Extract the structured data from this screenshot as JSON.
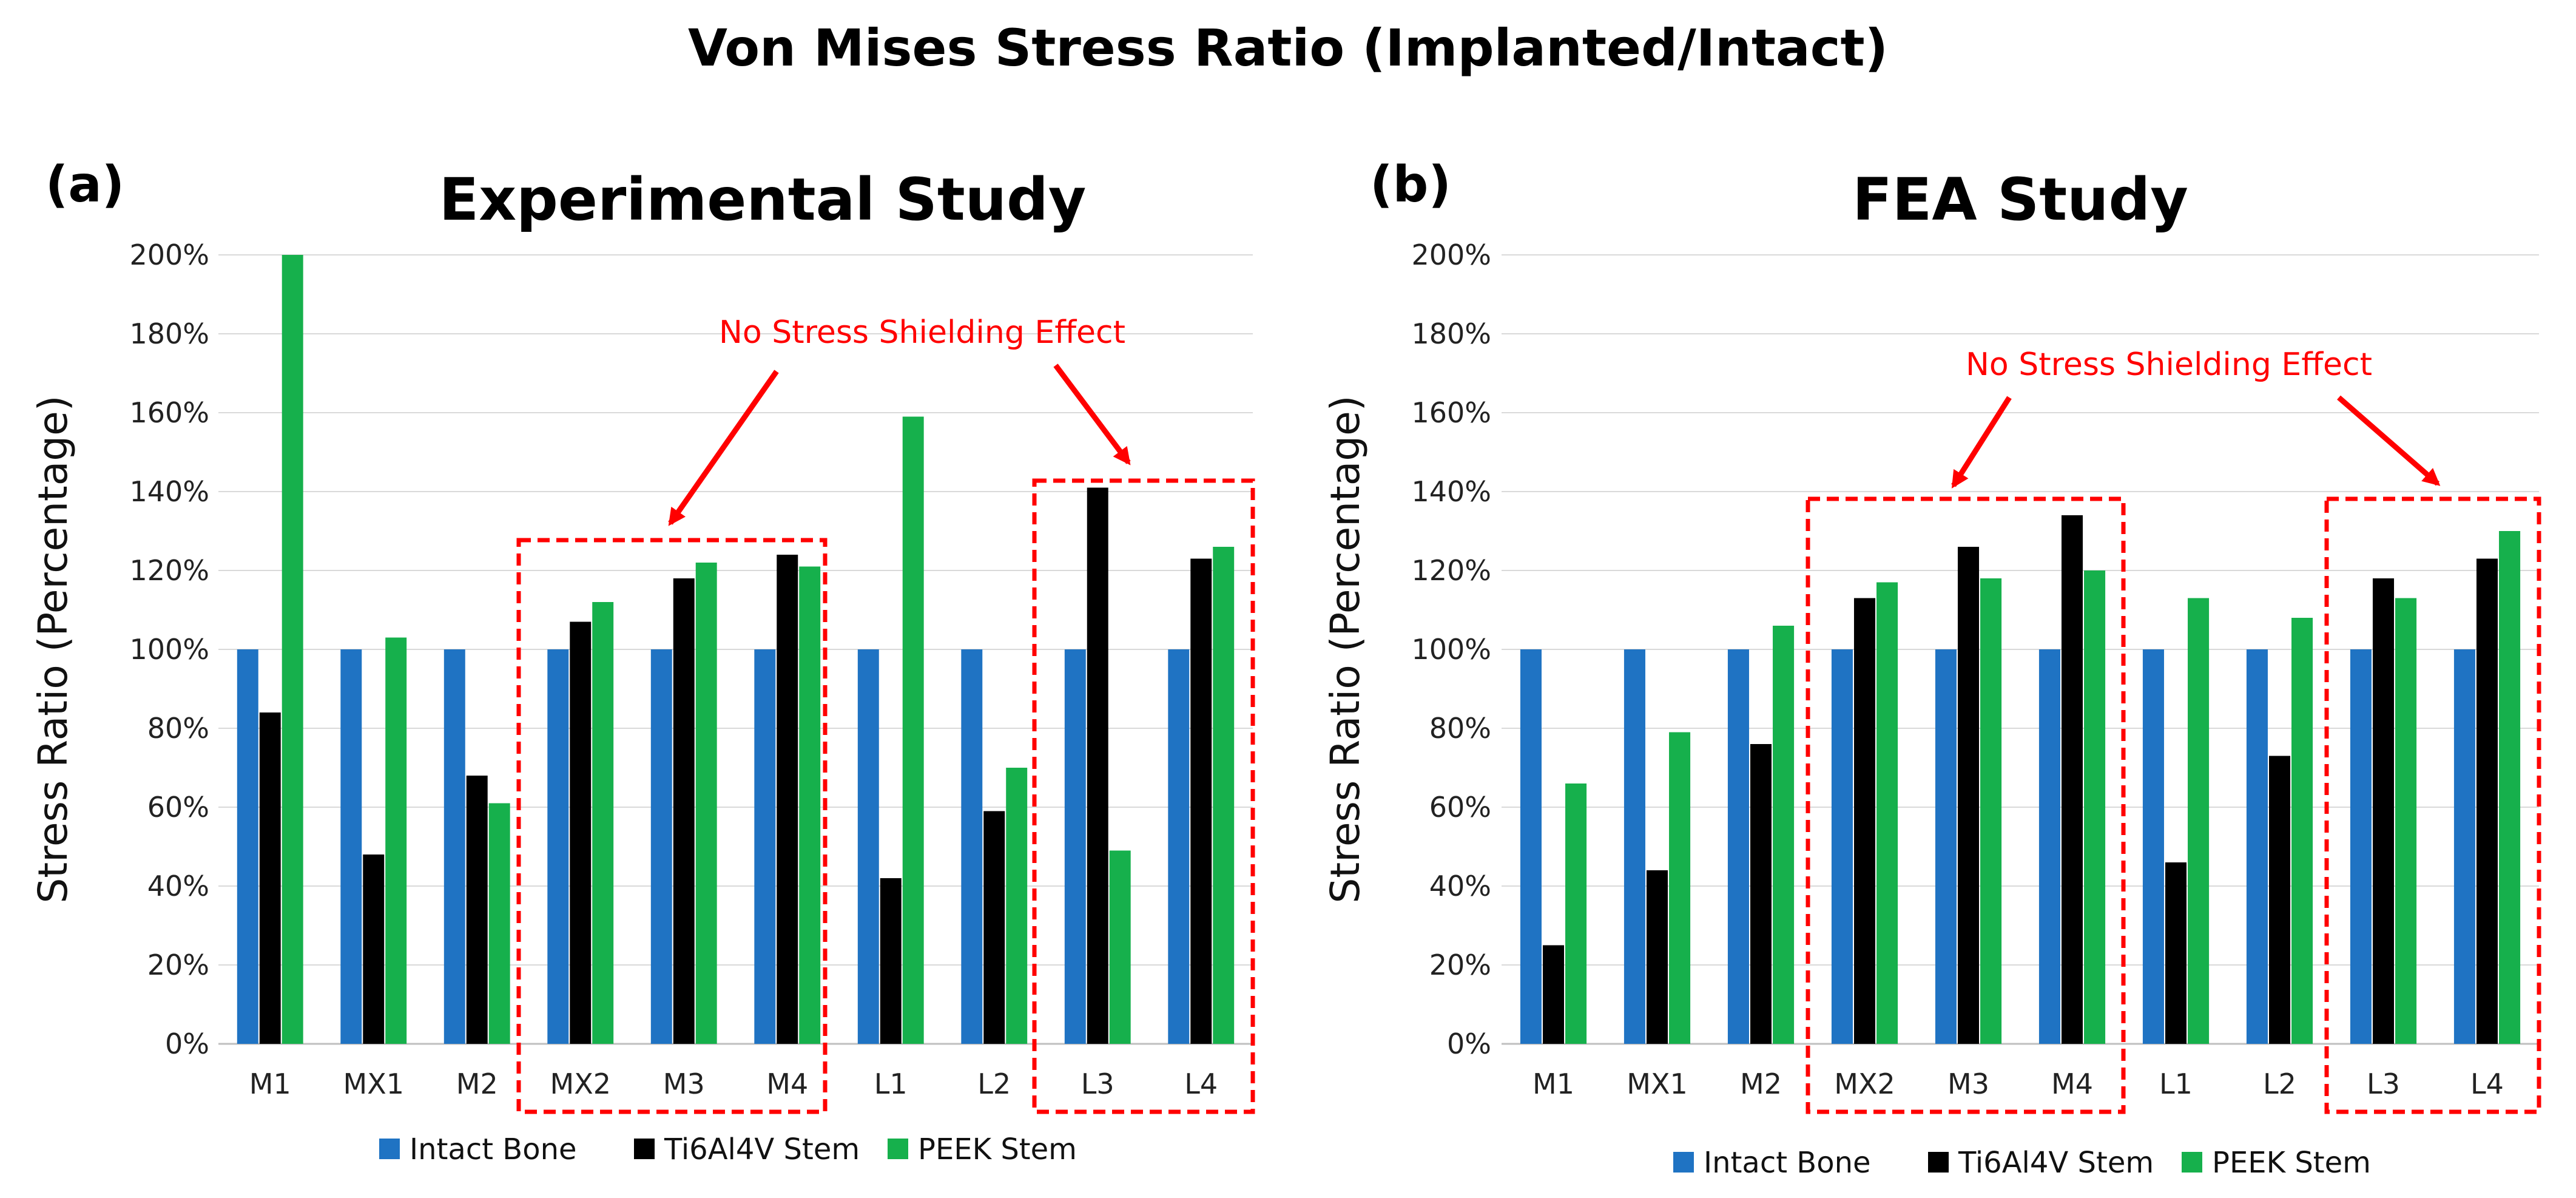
{
  "figure_title": "Von Mises Stress Ratio (Implanted/Intact)",
  "colors": {
    "Intact Bone": "#1f73c3",
    "Ti6Al4V Stem": "#000000",
    "PEEK Stem": "#16b04c",
    "annotation": "#ff0000",
    "grid": "#d9d9d9"
  },
  "chart_data": [
    {
      "type": "bar",
      "panel_label": "(a)",
      "title": "Experimental Study",
      "ylabel": "Stress Ratio (Percentage)",
      "xlabel": "",
      "ylim": [
        0,
        200
      ],
      "yticks": [
        "0%",
        "20%",
        "40%",
        "60%",
        "80%",
        "100%",
        "120%",
        "140%",
        "160%",
        "180%",
        "200%"
      ],
      "categories": [
        "M1",
        "MX1",
        "M2",
        "MX2",
        "M3",
        "M4",
        "L1",
        "L2",
        "L3",
        "L4"
      ],
      "series": [
        {
          "name": "Intact Bone",
          "values": [
            100,
            100,
            100,
            100,
            100,
            100,
            100,
            100,
            100,
            100
          ]
        },
        {
          "name": "Ti6Al4V Stem",
          "values": [
            84,
            48,
            68,
            107,
            118,
            124,
            42,
            59,
            141,
            123
          ]
        },
        {
          "name": "PEEK Stem",
          "values": [
            200,
            103,
            61,
            112,
            122,
            121,
            159,
            70,
            49,
            126
          ]
        }
      ],
      "annotation": {
        "text": "No Stress Shielding Effect",
        "highlight_groups": [
          [
            "MX2",
            "M4"
          ],
          [
            "L3",
            "L4"
          ]
        ]
      },
      "legend": [
        "Intact Bone",
        "Ti6Al4V Stem",
        "PEEK Stem"
      ],
      "legend_position": "bottom",
      "grid": true
    },
    {
      "type": "bar",
      "panel_label": "(b)",
      "title": "FEA Study",
      "ylabel": "Stress Ratio (Percentage)",
      "xlabel": "",
      "ylim": [
        0,
        200
      ],
      "yticks": [
        "0%",
        "20%",
        "40%",
        "60%",
        "80%",
        "100%",
        "120%",
        "140%",
        "160%",
        "180%",
        "200%"
      ],
      "categories": [
        "M1",
        "MX1",
        "M2",
        "MX2",
        "M3",
        "M4",
        "L1",
        "L2",
        "L3",
        "L4"
      ],
      "series": [
        {
          "name": "Intact Bone",
          "values": [
            100,
            100,
            100,
            100,
            100,
            100,
            100,
            100,
            100,
            100
          ]
        },
        {
          "name": "Ti6Al4V Stem",
          "values": [
            25,
            44,
            76,
            113,
            126,
            134,
            46,
            73,
            118,
            123
          ]
        },
        {
          "name": "PEEK Stem",
          "values": [
            66,
            79,
            106,
            117,
            118,
            120,
            113,
            108,
            113,
            130
          ]
        }
      ],
      "annotation": {
        "text": "No Stress Shielding Effect",
        "highlight_groups": [
          [
            "MX2",
            "M4"
          ],
          [
            "L3",
            "L4"
          ]
        ]
      },
      "legend": [
        "Intact Bone",
        "Ti6Al4V Stem",
        "PEEK Stem"
      ],
      "legend_position": "bottom",
      "grid": true
    }
  ]
}
